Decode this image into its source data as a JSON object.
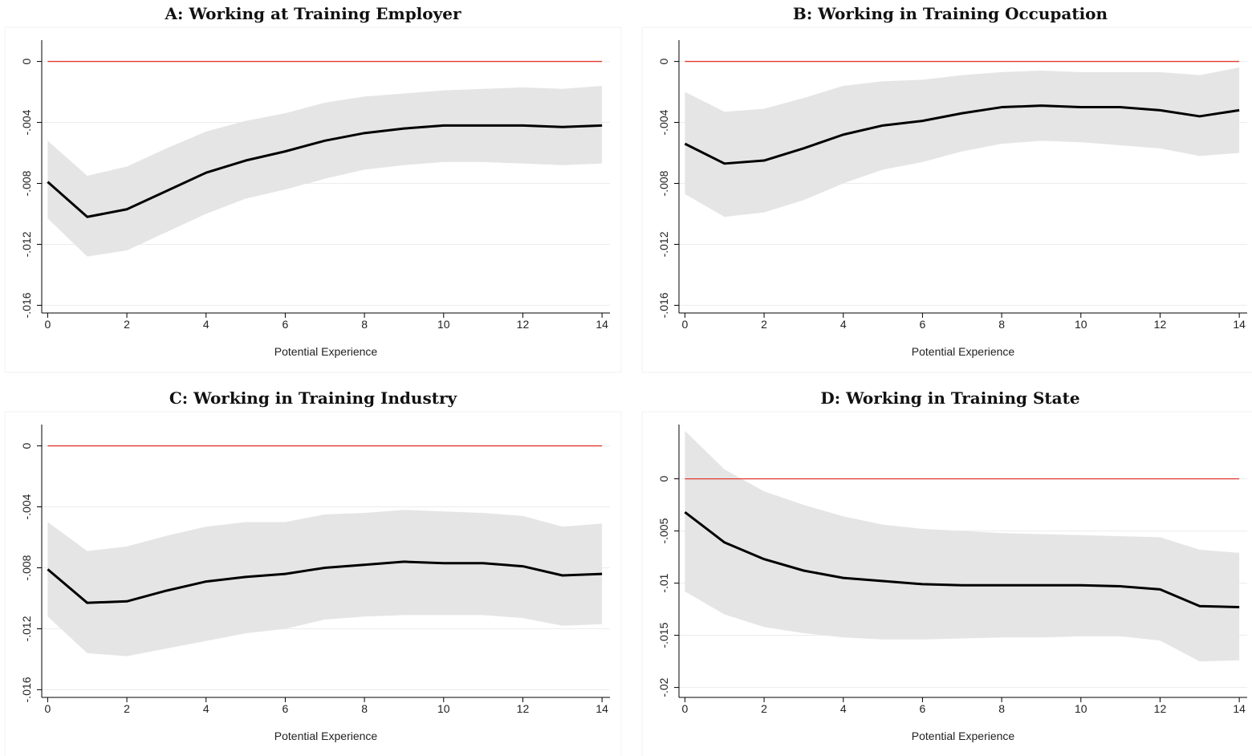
{
  "chart_data": [
    {
      "type": "line",
      "title": "A: Working at Training Employer",
      "xlabel": "Potential Experience",
      "x": [
        0,
        1,
        2,
        3,
        4,
        5,
        6,
        7,
        8,
        9,
        10,
        11,
        12,
        13,
        14
      ],
      "values": [
        -0.0079,
        -0.0102,
        -0.0097,
        -0.0085,
        -0.0073,
        -0.0065,
        -0.0059,
        -0.0052,
        -0.0047,
        -0.0044,
        -0.0042,
        -0.0042,
        -0.0042,
        -0.0043,
        -0.0042
      ],
      "ci_upper": [
        -0.0052,
        -0.0075,
        -0.0069,
        -0.0057,
        -0.0046,
        -0.0039,
        -0.0034,
        -0.0027,
        -0.0023,
        -0.0021,
        -0.0019,
        -0.0018,
        -0.0017,
        -0.0018,
        -0.0016
      ],
      "ci_lower": [
        -0.0103,
        -0.0128,
        -0.0124,
        -0.0112,
        -0.01,
        -0.009,
        -0.0084,
        -0.0077,
        -0.0071,
        -0.0068,
        -0.0066,
        -0.0066,
        -0.0067,
        -0.0068,
        -0.0067
      ],
      "color": "#000000",
      "band_color": "#e5e5e5",
      "hline": 0,
      "hline_color": "#e03c31",
      "xlim": [
        -0.15,
        14.2
      ],
      "xticks": [
        0,
        2,
        4,
        6,
        8,
        10,
        12,
        14
      ],
      "ylim": [
        -0.0164,
        0.0014
      ],
      "yticks": [
        0,
        {
          "value": -0.004,
          "label": "-.004"
        },
        {
          "value": -0.008,
          "label": "-.008"
        },
        {
          "value": -0.012,
          "label": "-.012"
        },
        {
          "value": -0.016,
          "label": "-.016"
        }
      ],
      "grid": true
    },
    {
      "type": "line",
      "title": "B: Working in Training Occupation",
      "xlabel": "Potential Experience",
      "x": [
        0,
        1,
        2,
        3,
        4,
        5,
        6,
        7,
        8,
        9,
        10,
        11,
        12,
        13,
        14
      ],
      "values": [
        -0.0054,
        -0.0067,
        -0.0065,
        -0.0057,
        -0.0048,
        -0.0042,
        -0.0039,
        -0.0034,
        -0.003,
        -0.0029,
        -0.003,
        -0.003,
        -0.0032,
        -0.0036,
        -0.0032
      ],
      "ci_upper": [
        -0.002,
        -0.0033,
        -0.0031,
        -0.0024,
        -0.0016,
        -0.0013,
        -0.0012,
        -0.0009,
        -0.0007,
        -0.0006,
        -0.0007,
        -0.0007,
        -0.0007,
        -0.0009,
        -0.0004
      ],
      "ci_lower": [
        -0.0087,
        -0.0102,
        -0.0099,
        -0.0091,
        -0.008,
        -0.0071,
        -0.0066,
        -0.0059,
        -0.0054,
        -0.0052,
        -0.0053,
        -0.0055,
        -0.0057,
        -0.0062,
        -0.006
      ],
      "color": "#000000",
      "band_color": "#e5e5e5",
      "hline": 0,
      "hline_color": "#e03c31",
      "xlim": [
        -0.15,
        14.2
      ],
      "xticks": [
        0,
        2,
        4,
        6,
        8,
        10,
        12,
        14
      ],
      "ylim": [
        -0.0164,
        0.0014
      ],
      "yticks": [
        0,
        {
          "value": -0.004,
          "label": "-.004"
        },
        {
          "value": -0.008,
          "label": "-.008"
        },
        {
          "value": -0.012,
          "label": "-.012"
        },
        {
          "value": -0.016,
          "label": "-.016"
        }
      ],
      "grid": true
    },
    {
      "type": "line",
      "title": "C: Working in Training Industry",
      "xlabel": "Potential Experience",
      "x": [
        0,
        1,
        2,
        3,
        4,
        5,
        6,
        7,
        8,
        9,
        10,
        11,
        12,
        13,
        14
      ],
      "values": [
        -0.0081,
        -0.0103,
        -0.0102,
        -0.0095,
        -0.0089,
        -0.0086,
        -0.0084,
        -0.008,
        -0.0078,
        -0.0076,
        -0.0077,
        -0.0077,
        -0.0079,
        -0.0085,
        -0.0084
      ],
      "ci_upper": [
        -0.005,
        -0.0069,
        -0.0066,
        -0.0059,
        -0.0053,
        -0.005,
        -0.005,
        -0.0045,
        -0.0044,
        -0.0042,
        -0.0043,
        -0.0044,
        -0.0046,
        -0.0053,
        -0.0051
      ],
      "ci_lower": [
        -0.0112,
        -0.0136,
        -0.0138,
        -0.0133,
        -0.0128,
        -0.0123,
        -0.012,
        -0.0114,
        -0.0112,
        -0.0111,
        -0.0111,
        -0.0111,
        -0.0113,
        -0.0118,
        -0.0117
      ],
      "color": "#000000",
      "band_color": "#e5e5e5",
      "hline": 0,
      "hline_color": "#e03c31",
      "xlim": [
        -0.15,
        14.2
      ],
      "xticks": [
        0,
        2,
        4,
        6,
        8,
        10,
        12,
        14
      ],
      "ylim": [
        -0.0164,
        0.0014
      ],
      "yticks": [
        0,
        {
          "value": -0.004,
          "label": "-.004"
        },
        {
          "value": -0.008,
          "label": "-.008"
        },
        {
          "value": -0.012,
          "label": "-.012"
        },
        {
          "value": -0.016,
          "label": "-.016"
        }
      ],
      "grid": true
    },
    {
      "type": "line",
      "title": "D: Working in Training State",
      "xlabel": "Potential Experience",
      "x": [
        0,
        1,
        2,
        3,
        4,
        5,
        6,
        7,
        8,
        9,
        10,
        11,
        12,
        13,
        14
      ],
      "values": [
        -0.0032,
        -0.0061,
        -0.0077,
        -0.0088,
        -0.0095,
        -0.0098,
        -0.0101,
        -0.0102,
        -0.0102,
        -0.0102,
        -0.0102,
        -0.0103,
        -0.0106,
        -0.0122,
        -0.0123
      ],
      "ci_upper": [
        0.0046,
        0.0009,
        -0.0012,
        -0.0025,
        -0.0036,
        -0.0044,
        -0.0048,
        -0.005,
        -0.0052,
        -0.0053,
        -0.0054,
        -0.0055,
        -0.0056,
        -0.0068,
        -0.0071
      ],
      "ci_lower": [
        -0.0108,
        -0.013,
        -0.0142,
        -0.0148,
        -0.0152,
        -0.0154,
        -0.0154,
        -0.0153,
        -0.0152,
        -0.0152,
        -0.0151,
        -0.0151,
        -0.0155,
        -0.0175,
        -0.0174
      ],
      "color": "#000000",
      "band_color": "#e5e5e5",
      "hline": 0,
      "hline_color": "#e03c31",
      "xlim": [
        -0.15,
        14.2
      ],
      "xticks": [
        0,
        2,
        4,
        6,
        8,
        10,
        12,
        14
      ],
      "ylim": [
        -0.0208,
        0.0052
      ],
      "yticks": [
        0,
        {
          "value": -0.005,
          "label": "-.005"
        },
        {
          "value": -0.01,
          "label": "-.01"
        },
        {
          "value": -0.015,
          "label": "-.015"
        },
        {
          "value": -0.02,
          "label": "-.02"
        }
      ],
      "grid": true
    }
  ]
}
